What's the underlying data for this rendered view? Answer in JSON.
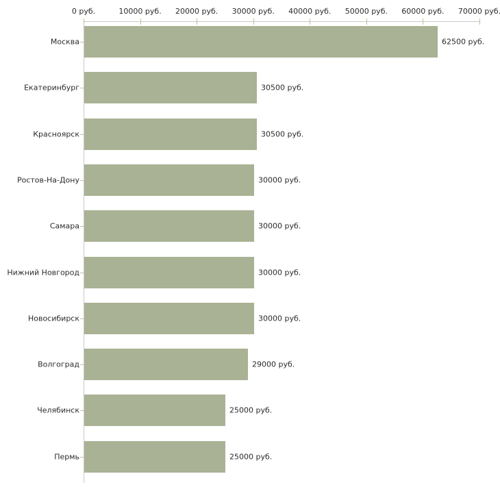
{
  "chart_data": {
    "type": "bar",
    "orientation": "horizontal",
    "title": "",
    "xlabel": "",
    "ylabel": "",
    "categories": [
      "Москва",
      "Екатеринбург",
      "Красноярск",
      "Ростов-На-Дону",
      "Самара",
      "Нижний Новгород",
      "Новосибирск",
      "Волгоград",
      "Челябинск",
      "Пермь"
    ],
    "values": [
      62500,
      30500,
      30500,
      30000,
      30000,
      30000,
      30000,
      29000,
      25000,
      25000
    ],
    "value_labels": [
      "62500 руб.",
      "30500 руб.",
      "30500 руб.",
      "30000 руб.",
      "30000 руб.",
      "30000 руб.",
      "30000 руб.",
      "29000 руб.",
      "25000 руб.",
      "25000 руб."
    ],
    "x_ticks": [
      0,
      10000,
      20000,
      30000,
      40000,
      50000,
      60000,
      70000
    ],
    "x_tick_labels": [
      "0 руб.",
      "10000 руб.",
      "20000 руб.",
      "30000 руб.",
      "40000 руб.",
      "50000 руб.",
      "60000 руб.",
      "70000 руб."
    ],
    "xlim": [
      0,
      70000
    ],
    "grid": false,
    "legend_position": "none",
    "axis_position": "top-left",
    "colors": {
      "bar_fill": "#a9b294",
      "axis_line": "#c9c9c9",
      "tick_mark": "#bcc09e",
      "text": "#2b2b2b",
      "background": "#ffffff"
    }
  }
}
